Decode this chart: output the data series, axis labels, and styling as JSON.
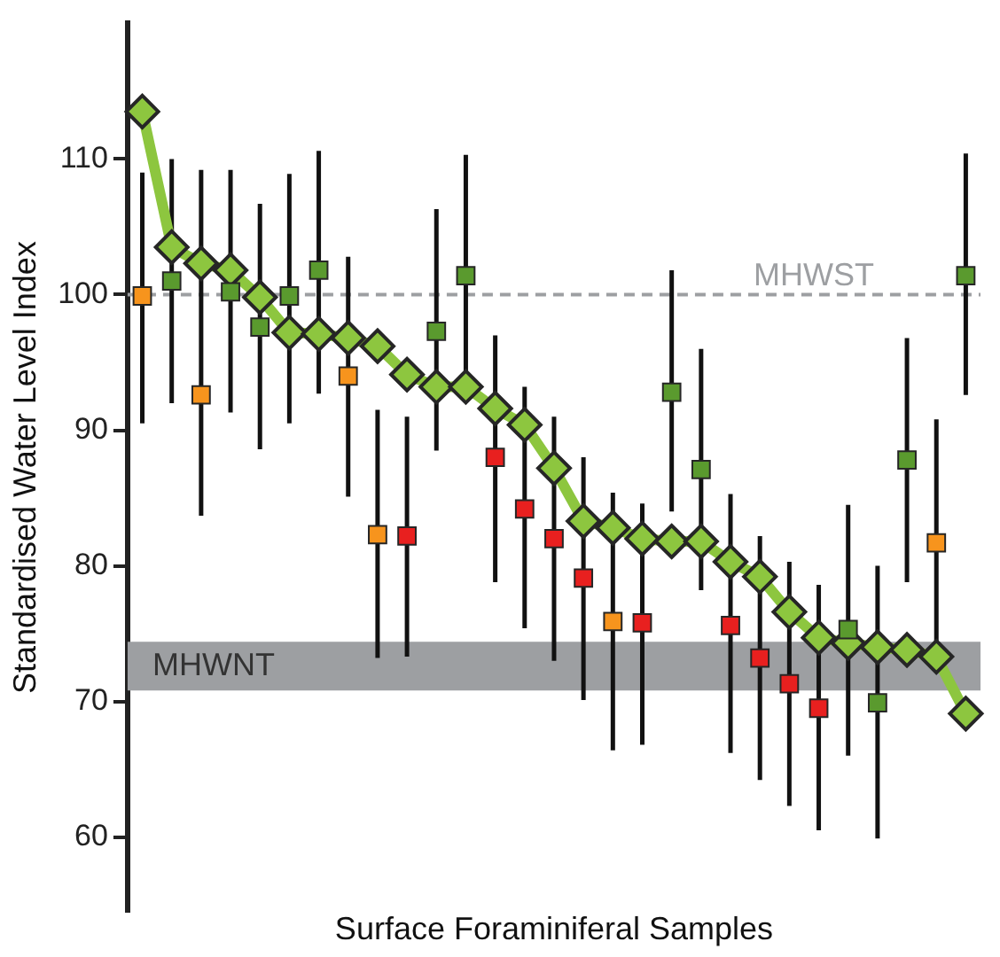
{
  "chart_data": {
    "type": "line",
    "ylabel": "Standardised Water Level Index",
    "xlabel": "Surface Foraminiferal Samples",
    "categories": [
      null,
      null,
      null,
      null,
      null,
      null,
      null,
      null,
      null,
      null,
      null,
      null,
      null,
      null,
      null,
      null,
      null,
      null,
      null,
      null,
      null,
      null,
      null,
      null,
      null,
      null,
      null,
      null,
      null
    ],
    "series": [
      {
        "type": "scatter",
        "marker": "square",
        "colors": [
          "#f7941d",
          "#5a9a2e",
          "#f7941d",
          "#5a9a2e",
          "#5a9a2e",
          "#5a9a2e",
          "#5a9a2e",
          "#f7941d",
          "#f7941d",
          "#e8201f",
          "#5a9a2e",
          "#5a9a2e",
          "#e8201f",
          "#e8201f",
          "#e8201f",
          "#e8201f",
          "#f7941d",
          "#e8201f",
          "#5a9a2e",
          "#5a9a2e",
          "#e8201f",
          "#e8201f",
          "#e8201f",
          "#e8201f",
          "#5a9a2e",
          "#5a9a2e",
          "#5a9a2e",
          "#f7941d",
          "#5a9a2e"
        ],
        "values": [
          99.9,
          101,
          92.6,
          100.2,
          97.6,
          99.9,
          101.8,
          94,
          82.3,
          82.2,
          97.3,
          101.4,
          88,
          84.2,
          82,
          79.1,
          75.9,
          75.8,
          92.8,
          87.1,
          75.6,
          73.2,
          71.3,
          69.5,
          75.3,
          69.9,
          87.8,
          81.7,
          101.4
        ],
        "errors": [
          [
            90.5,
            109
          ],
          [
            92,
            110
          ],
          [
            83.7,
            109.2
          ],
          [
            91.3,
            109.2
          ],
          [
            88.6,
            106.7
          ],
          [
            90.5,
            108.9
          ],
          [
            92.7,
            110.6
          ],
          [
            85.1,
            102.8
          ],
          [
            73.2,
            91.5
          ],
          [
            73.3,
            91
          ],
          [
            88.5,
            106.3
          ],
          [
            92.4,
            110.3
          ],
          [
            78.8,
            97
          ],
          [
            75.4,
            93.2
          ],
          [
            73,
            91
          ],
          [
            70.1,
            88
          ],
          [
            66.4,
            85.4
          ],
          [
            66.8,
            84.6
          ],
          [
            84,
            101.8
          ],
          [
            78.2,
            96
          ],
          [
            66.2,
            85.3
          ],
          [
            64.2,
            82.2
          ],
          [
            62.3,
            80.3
          ],
          [
            60.5,
            78.6
          ],
          [
            66,
            84.5
          ],
          [
            59.9,
            80
          ],
          [
            78.8,
            96.8
          ],
          [
            72.5,
            90.8
          ],
          [
            92.6,
            110.4
          ]
        ]
      },
      {
        "marker": "diamond",
        "color": "#8dc63f",
        "values": [
          113.5,
          103.5,
          102.3,
          101.8,
          99.8,
          97.2,
          97.1,
          96.8,
          96.2,
          94.1,
          93.2,
          93.2,
          91.6,
          90.4,
          87.2,
          83.3,
          82.8,
          82,
          81.8,
          81.8,
          80.3,
          79.2,
          76.6,
          74.7,
          74.3,
          74,
          73.8,
          73.3,
          69.1
        ]
      }
    ],
    "ylim": [
      54.5,
      120
    ],
    "yticks": [
      60,
      70,
      80,
      90,
      100,
      110
    ],
    "grid": false,
    "legend": false,
    "tick_labels": "y",
    "ref_lines": [
      {
        "axis": "y",
        "value": 100,
        "label": "MHWST",
        "color": "#9d9fa2",
        "line_style": "dashed"
      }
    ],
    "bands": [
      {
        "axis": "y",
        "from": 70.8,
        "to": 74.4,
        "label": "MHWNT",
        "color": "#9d9fa2"
      }
    ]
  }
}
